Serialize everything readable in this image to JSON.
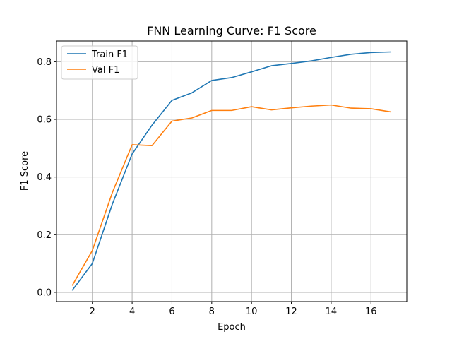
{
  "chart_data": {
    "type": "line",
    "title": "FNN Learning Curve: F1 Score",
    "xlabel": "Epoch",
    "ylabel": "F1 Score",
    "xlim": [
      0.2,
      17.8
    ],
    "ylim": [
      -0.032,
      0.872
    ],
    "xticks": [
      2,
      4,
      6,
      8,
      10,
      12,
      14,
      16
    ],
    "yticks": [
      0.0,
      0.2,
      0.4,
      0.6,
      0.8
    ],
    "xtick_labels": [
      "2",
      "4",
      "6",
      "8",
      "10",
      "12",
      "14",
      "16"
    ],
    "ytick_labels": [
      "0.0",
      "0.2",
      "0.4",
      "0.6",
      "0.8"
    ],
    "grid": true,
    "legend_position": "upper-left",
    "x": [
      1,
      2,
      3,
      4,
      5,
      6,
      7,
      8,
      9,
      10,
      11,
      12,
      13,
      14,
      15,
      16,
      17
    ],
    "series": [
      {
        "name": "Train F1",
        "color": "#1f77b4",
        "values": [
          0.008,
          0.1,
          0.305,
          0.48,
          0.58,
          0.666,
          0.692,
          0.735,
          0.745,
          0.765,
          0.786,
          0.794,
          0.803,
          0.815,
          0.826,
          0.832,
          0.834
        ]
      },
      {
        "name": "Val F1",
        "color": "#ff7f0e",
        "values": [
          0.025,
          0.145,
          0.345,
          0.512,
          0.509,
          0.594,
          0.605,
          0.631,
          0.631,
          0.644,
          0.633,
          0.64,
          0.646,
          0.65,
          0.639,
          0.637,
          0.626
        ]
      }
    ]
  }
}
